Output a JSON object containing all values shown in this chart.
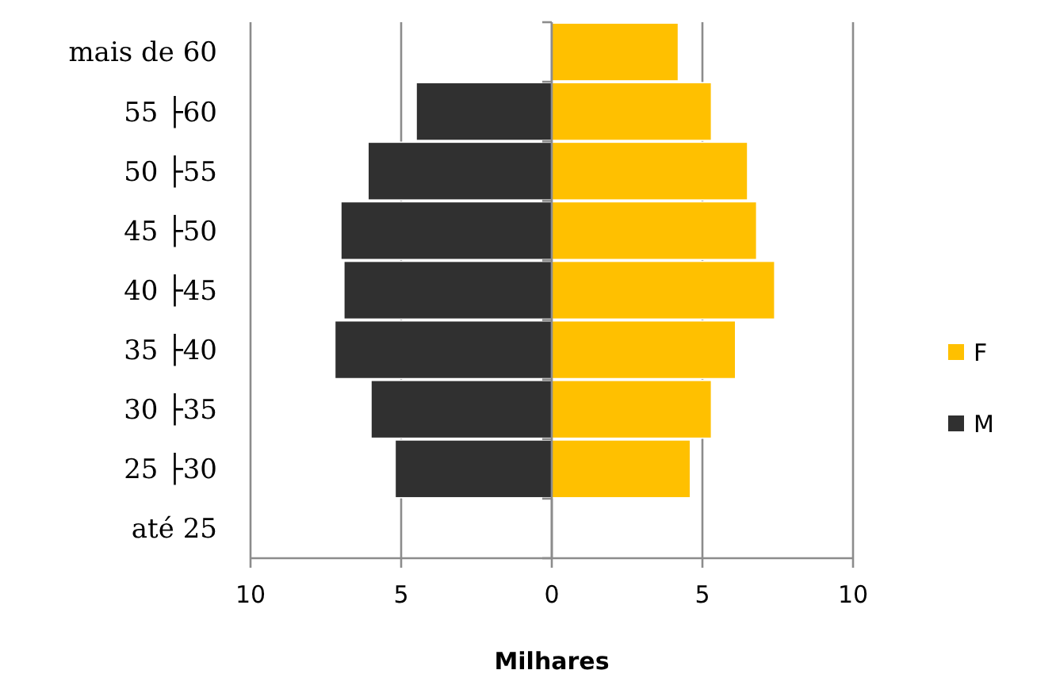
{
  "chart_data": {
    "type": "bar",
    "orientation": "horizontal",
    "stacked": true,
    "xlabel": "Milhares",
    "categories": [
      "mais de 60",
      "55 ├60",
      "50 ├55",
      "45 ├50",
      "40 ├45",
      "35 ├40",
      "30 ├35",
      "25 ├30",
      "até 25"
    ],
    "series": [
      {
        "name": "F",
        "color": "#ffc000",
        "values": [
          4.2,
          5.3,
          6.5,
          6.8,
          7.4,
          6.1,
          5.3,
          4.6,
          null
        ]
      },
      {
        "name": "M",
        "color": "#303030",
        "values": [
          null,
          -4.5,
          -6.1,
          -7.0,
          -6.9,
          -7.2,
          -6.0,
          -5.2,
          null
        ]
      }
    ],
    "xlim": [
      -10,
      10
    ],
    "xticks": [
      {
        "value": -10,
        "label": "10"
      },
      {
        "value": -5,
        "label": "5"
      },
      0,
      5,
      10
    ],
    "grid": "x",
    "legend": "right"
  }
}
